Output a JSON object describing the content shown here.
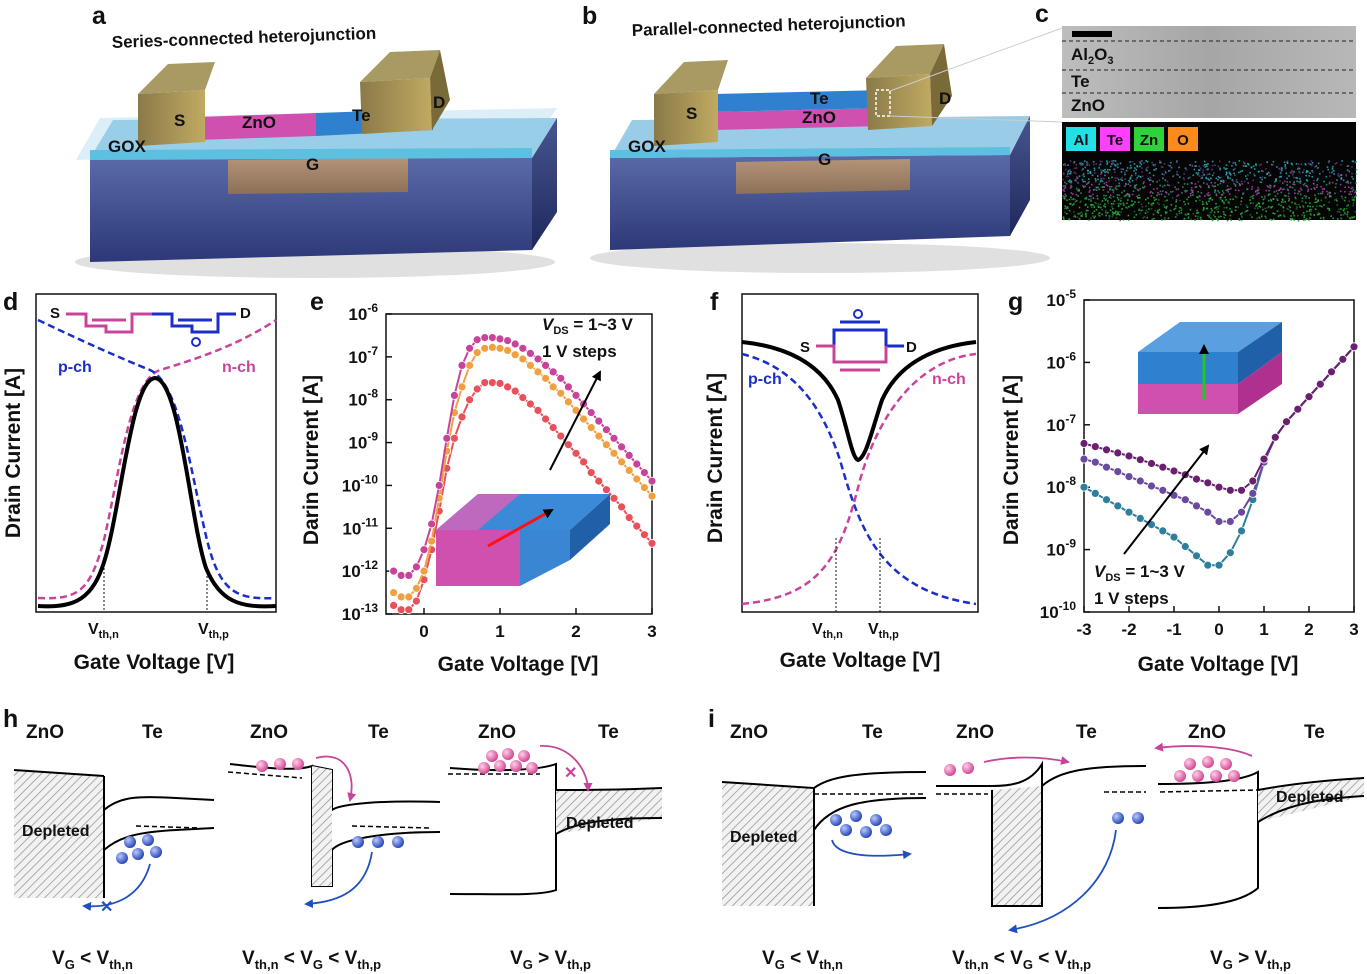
{
  "panels": {
    "a": "a",
    "b": "b",
    "c": "c",
    "d": "d",
    "e": "e",
    "f": "f",
    "g": "g",
    "h": "h",
    "i": "i"
  },
  "device_a": {
    "title": "Series-connected heterojunction",
    "source": "S",
    "drain": "D",
    "gate": "G",
    "gox": "GOX",
    "zno": "ZnO",
    "te": "Te"
  },
  "device_b": {
    "title": "Parallel-connected heterojunction",
    "source": "S",
    "drain": "D",
    "gate": "G",
    "gox": "GOX",
    "zno": "ZnO",
    "te": "Te"
  },
  "tem": {
    "layers": [
      "Al2O3",
      "Te",
      "ZnO"
    ],
    "legend": [
      "Al",
      "Te",
      "Zn",
      "O"
    ],
    "legend_colors": [
      "#22e0e8",
      "#ff40ff",
      "#2fd23a",
      "#ff8a1c"
    ]
  },
  "panel_d": {
    "ylabel": "Drain Current [A]",
    "xlabel": "Gate Voltage [V]",
    "pch": "p-ch",
    "nch": "n-ch",
    "source": "S",
    "drain": "D",
    "vthn": "V",
    "vthn_sub": "th,n",
    "vthp": "V",
    "vthp_sub": "th,p"
  },
  "panel_f": {
    "ylabel": "Drain Current [A]",
    "xlabel": "Gate Voltage [V]",
    "pch": "p-ch",
    "nch": "n-ch",
    "source": "S",
    "drain": "D",
    "vthn": "V",
    "vthn_sub": "th,n",
    "vthp": "V",
    "vthp_sub": "th,p"
  },
  "panel_e": {
    "ylabel": "Darin Current [A]",
    "xlabel": "Gate Voltage [V]",
    "vds_v": "V",
    "vds_sub": "DS",
    "vds_val": " = 1~3 V",
    "steps": "1 V steps"
  },
  "panel_g": {
    "ylabel": "Darin Current [A]",
    "xlabel": "Gate Voltage [V]",
    "vds_v": "V",
    "vds_sub": "DS",
    "vds_val": " = 1~3 V",
    "steps": "1 V steps"
  },
  "bands_h": {
    "zno": "ZnO",
    "te": "Te",
    "depleted": "Depleted",
    "cond1": "V",
    "cond1_sub": "G",
    "cond1_mid": " < V",
    "cond1_sub2": "th,n",
    "cond2_a": "V",
    "cond2_a_sub": "th,n",
    "cond2_mid1": " < V",
    "cond2_b_sub": "G",
    "cond2_mid2": " < V",
    "cond2_c_sub": "th,p",
    "cond3": "V",
    "cond3_sub": "G",
    "cond3_mid": " > V",
    "cond3_sub2": "th,p"
  },
  "bands_i": {
    "zno": "ZnO",
    "te": "Te",
    "depleted": "Depleted"
  },
  "chart_data": [
    {
      "panel": "e",
      "type": "line",
      "xlabel": "Gate Voltage [V]",
      "ylabel": "Darin Current [A]",
      "xlim": [
        -0.5,
        3
      ],
      "ylim_log10": [
        -13,
        -6
      ],
      "x_ticks": [
        0,
        1,
        2,
        3
      ],
      "y_ticks_log10": [
        -13,
        -12,
        -11,
        -10,
        -9,
        -8,
        -7,
        -6
      ],
      "tick_base": "10",
      "tick_exponents": [
        "-13",
        "-12",
        "-11",
        "-10",
        "-9",
        "-8",
        "-7",
        "-6"
      ],
      "x": [
        -0.4,
        -0.3,
        -0.2,
        -0.1,
        0.0,
        0.1,
        0.2,
        0.3,
        0.4,
        0.5,
        0.6,
        0.7,
        0.8,
        0.9,
        1.0,
        1.1,
        1.2,
        1.3,
        1.4,
        1.5,
        1.6,
        1.7,
        1.8,
        1.9,
        2.0,
        2.1,
        2.2,
        2.3,
        2.4,
        2.5,
        2.6,
        2.7,
        2.8,
        2.9,
        3.0
      ],
      "series": [
        {
          "color": "#e8505a",
          "log10_values": [
            -12.8,
            -12.9,
            -12.9,
            -12.7,
            -12.2,
            -11.5,
            -10.6,
            -9.6,
            -8.9,
            -8.4,
            -8.0,
            -7.75,
            -7.6,
            -7.6,
            -7.62,
            -7.7,
            -7.8,
            -7.95,
            -8.1,
            -8.25,
            -8.45,
            -8.65,
            -8.85,
            -9.05,
            -9.25,
            -9.45,
            -9.7,
            -9.9,
            -10.1,
            -10.3,
            -10.5,
            -10.75,
            -10.95,
            -11.15,
            -11.35
          ]
        },
        {
          "color": "#f0a040",
          "log10_values": [
            -12.5,
            -12.6,
            -12.6,
            -12.4,
            -12.0,
            -11.3,
            -10.3,
            -9.2,
            -8.3,
            -7.7,
            -7.2,
            -6.9,
            -6.8,
            -6.78,
            -6.8,
            -6.85,
            -6.95,
            -7.05,
            -7.2,
            -7.35,
            -7.5,
            -7.7,
            -7.85,
            -8.05,
            -8.25,
            -8.45,
            -8.65,
            -8.85,
            -9.05,
            -9.25,
            -9.45,
            -9.65,
            -9.85,
            -10.05,
            -10.25
          ]
        },
        {
          "color": "#c8449a",
          "log10_values": [
            -12.0,
            -12.1,
            -12.1,
            -11.9,
            -11.5,
            -10.9,
            -10.0,
            -8.9,
            -7.9,
            -7.2,
            -6.8,
            -6.6,
            -6.55,
            -6.55,
            -6.58,
            -6.62,
            -6.7,
            -6.8,
            -6.92,
            -7.05,
            -7.2,
            -7.35,
            -7.5,
            -7.7,
            -7.9,
            -8.1,
            -8.3,
            -8.5,
            -8.7,
            -8.9,
            -9.1,
            -9.3,
            -9.5,
            -9.7,
            -9.9
          ]
        }
      ]
    },
    {
      "panel": "g",
      "type": "line",
      "xlabel": "Gate Voltage [V]",
      "ylabel": "Darin Current [A]",
      "xlim": [
        -3,
        3
      ],
      "ylim_log10": [
        -10,
        -5
      ],
      "x_ticks": [
        -3,
        -2,
        -1,
        0,
        1,
        2,
        3
      ],
      "y_ticks_log10": [
        -10,
        -9,
        -8,
        -7,
        -6,
        -5
      ],
      "tick_base": "10",
      "tick_exponents": [
        "-10",
        "-9",
        "-8",
        "-7",
        "-6",
        "-5"
      ],
      "x": [
        -3.0,
        -2.75,
        -2.5,
        -2.25,
        -2.0,
        -1.75,
        -1.5,
        -1.25,
        -1.0,
        -0.75,
        -0.5,
        -0.25,
        0.0,
        0.25,
        0.5,
        0.75,
        1.0,
        1.25,
        1.5,
        1.75,
        2.0,
        2.25,
        2.5,
        2.75,
        3.0
      ],
      "series": [
        {
          "color": "#2f7f9c",
          "log10_values": [
            -8.0,
            -8.1,
            -8.2,
            -8.3,
            -8.4,
            -8.5,
            -8.6,
            -8.7,
            -8.8,
            -8.95,
            -9.1,
            -9.25,
            -9.25,
            -9.05,
            -8.7,
            -8.2,
            -7.6,
            -7.2,
            -6.95,
            -6.75,
            -6.55,
            -6.35,
            -6.15,
            -5.95,
            -5.75
          ]
        },
        {
          "color": "#6a4aa0",
          "log10_values": [
            -7.55,
            -7.6,
            -7.68,
            -7.75,
            -7.83,
            -7.9,
            -7.98,
            -8.05,
            -8.13,
            -8.2,
            -8.3,
            -8.4,
            -8.55,
            -8.55,
            -8.4,
            -8.1,
            -7.6,
            -7.2,
            -6.95,
            -6.75,
            -6.55,
            -6.35,
            -6.15,
            -5.95,
            -5.75
          ]
        },
        {
          "color": "#6a2070",
          "log10_values": [
            -7.3,
            -7.35,
            -7.4,
            -7.45,
            -7.5,
            -7.56,
            -7.62,
            -7.68,
            -7.74,
            -7.8,
            -7.87,
            -7.93,
            -8.0,
            -8.05,
            -8.05,
            -7.9,
            -7.55,
            -7.2,
            -6.95,
            -6.75,
            -6.55,
            -6.35,
            -6.15,
            -5.95,
            -5.75
          ]
        }
      ]
    },
    {
      "panel": "d",
      "type": "line",
      "xlabel": "Gate Voltage [V]",
      "ylabel": "Drain Current [A]",
      "series": [
        {
          "name": "p-ch",
          "style": "dashed",
          "color": "#1a2ec8"
        },
        {
          "name": "n-ch",
          "style": "dashed",
          "color": "#c8449a"
        },
        {
          "style": "solid",
          "color": "#000000"
        }
      ]
    },
    {
      "panel": "f",
      "type": "line",
      "xlabel": "Gate Voltage [V]",
      "ylabel": "Drain Current [A]",
      "series": [
        {
          "name": "p-ch",
          "style": "dashed",
          "color": "#1a2ec8"
        },
        {
          "name": "n-ch",
          "style": "dashed",
          "color": "#c8449a"
        },
        {
          "style": "solid",
          "color": "#000000"
        }
      ]
    }
  ]
}
